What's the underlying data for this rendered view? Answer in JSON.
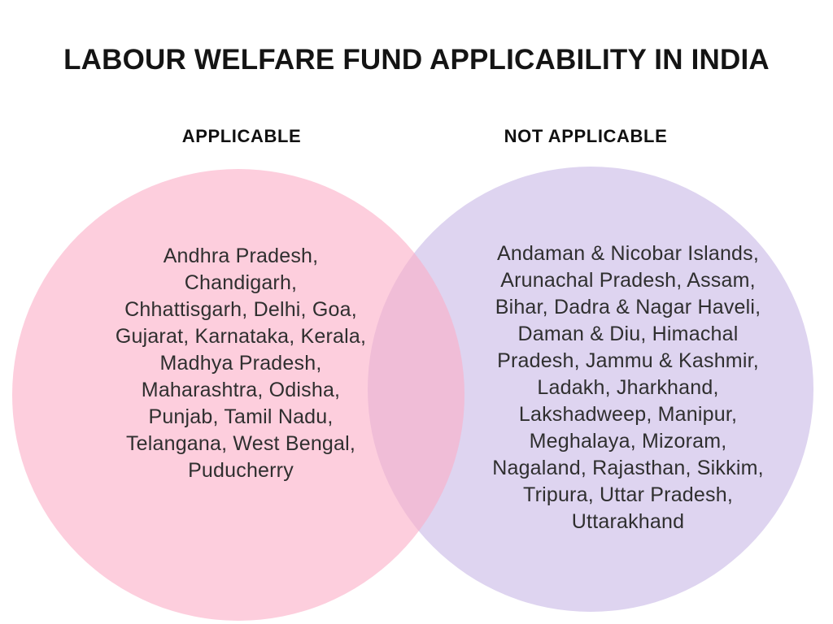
{
  "title": "LABOUR WELFARE FUND APPLICABILITY IN INDIA",
  "diagram": {
    "type": "venn",
    "left_circle": {
      "header": "APPLICABLE",
      "fill": "rgba(252,174,199,0.6)",
      "effective_color": "#FDCEDD",
      "lines": [
        "Andhra Pradesh,",
        "Chandigarh,",
        "Chhattisgarh, Delhi, Goa,",
        "Gujarat, Karnataka, Kerala,",
        "Madhya Pradesh,",
        "Maharashtra, Odisha,",
        "Punjab, Tamil Nadu,",
        "Telangana, West Bengal,",
        "Puducherry"
      ]
    },
    "right_circle": {
      "header": "NOT APPLICABLE",
      "fill": "#DED4F0",
      "effective_color": "#DED4F0",
      "lines": [
        "Andaman & Nicobar Islands,",
        "Arunachal Pradesh, Assam,",
        "Bihar, Dadra & Nagar Haveli,",
        "Daman & Diu, Himachal",
        "Pradesh, Jammu & Kashmir,",
        "Ladakh, Jharkhand,",
        "Lakshadweep, Manipur,",
        "Meghalaya, Mizoram,",
        "Nagaland, Rajasthan, Sikkim,",
        "Tripura, Uttar Pradesh,",
        "Uttarakhand"
      ]
    },
    "overlap_color": "#F0BBD9",
    "text_color": "#2f2f2f",
    "title_color": "#141414"
  }
}
